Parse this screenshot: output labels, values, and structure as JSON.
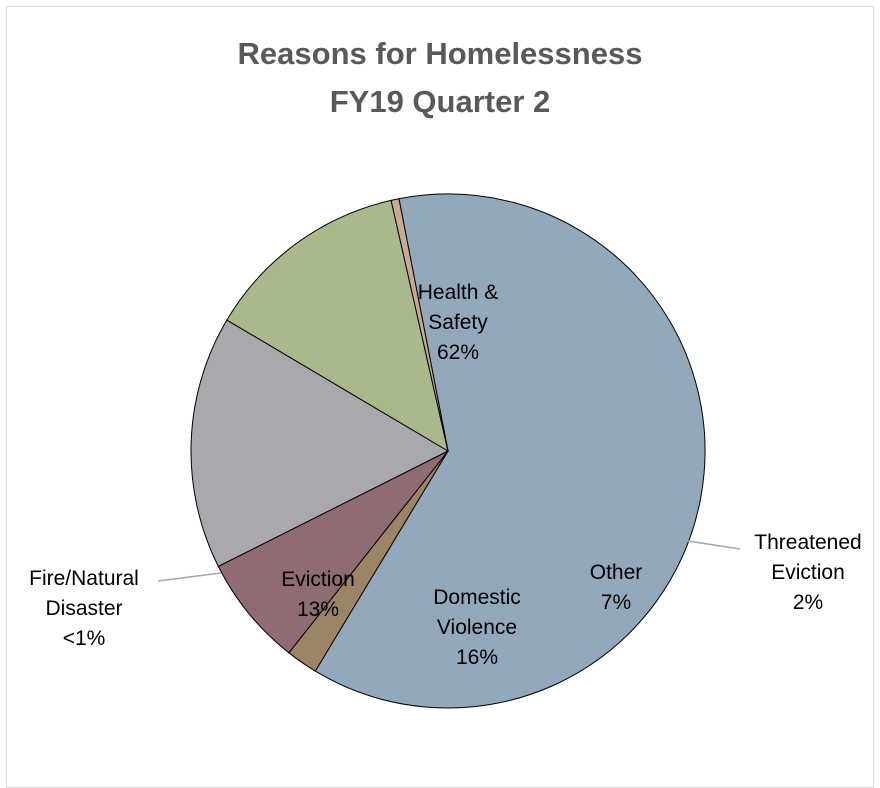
{
  "chart_data": {
    "type": "pie",
    "title": "Reasons for Homelessness",
    "subtitle": "FY19 Quarter 2",
    "slices": [
      {
        "label": "Health & Safety",
        "value": 62,
        "display": "62%",
        "color": "#93a9bb",
        "label_lines": [
          "Health &",
          "Safety",
          "62%"
        ]
      },
      {
        "label": "Threatened Eviction",
        "value": 2,
        "display": "2%",
        "color": "#9c8566",
        "label_lines": [
          "Threatened",
          "Eviction",
          "2%"
        ]
      },
      {
        "label": "Other",
        "value": 7,
        "display": "7%",
        "color": "#8f6b74",
        "label_lines": [
          "Other",
          "7%"
        ]
      },
      {
        "label": "Domestic Violence",
        "value": 16,
        "display": "16%",
        "color": "#a9a8ad",
        "label_lines": [
          "Domestic",
          "Violence",
          "16%"
        ]
      },
      {
        "label": "Eviction",
        "value": 13,
        "display": "13%",
        "color": "#a9b98b",
        "label_lines": [
          "Eviction",
          "13%"
        ]
      },
      {
        "label": "Fire/Natural Disaster",
        "value": 0.5,
        "display": "<1%",
        "color": "#c8a995",
        "label_lines": [
          "Fire/Natural",
          "Disaster",
          "<1%"
        ]
      }
    ]
  }
}
